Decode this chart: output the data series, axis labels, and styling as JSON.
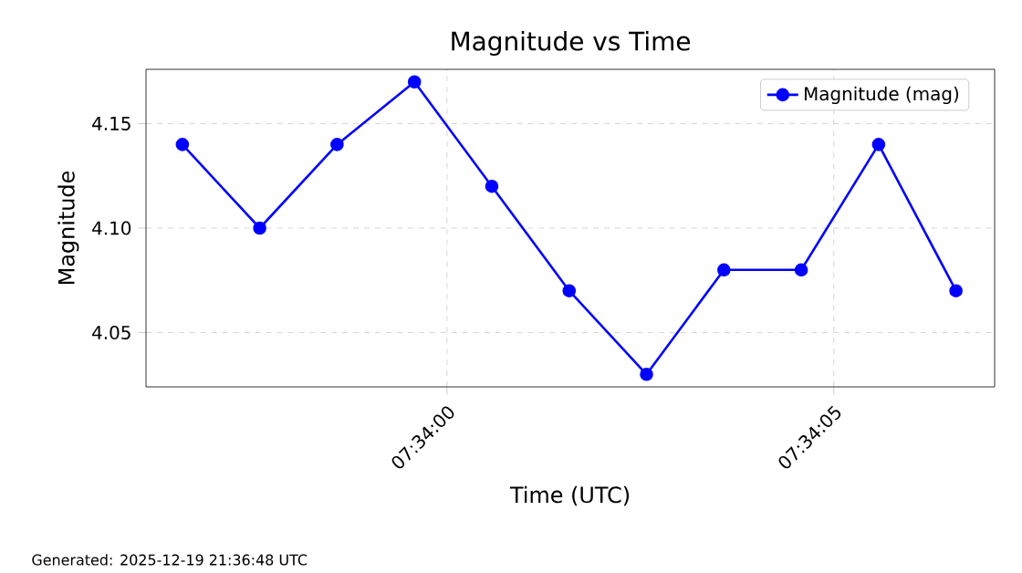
{
  "chart_data": {
    "type": "line",
    "title": "Magnitude vs Time",
    "xlabel": "Time (UTC)",
    "ylabel": "Magnitude",
    "x": [
      7.5657167,
      7.5659944,
      7.5662722,
      7.56655,
      7.5668278,
      7.5671056,
      7.5673833,
      7.5676611,
      7.5679389,
      7.5682167,
      7.5684944
    ],
    "series": [
      {
        "name": "Magnitude (mag)",
        "color": "#0000ff",
        "values": [
          4.14,
          4.1,
          4.14,
          4.17,
          4.12,
          4.07,
          4.03,
          4.08,
          4.08,
          4.14,
          4.07
        ]
      }
    ],
    "xlim": [
      7.5655861,
      7.5686333
    ],
    "ylim": [
      4.024,
      4.176
    ],
    "xticks": [
      {
        "value": 7.5666667,
        "label": "07:34:00"
      },
      {
        "value": 7.5680556,
        "label": "07:34:05"
      }
    ],
    "yticks": [
      4.05,
      {
        "value": 4.1,
        "label": "4.10"
      },
      4.15
    ],
    "grid": true,
    "legend": "top right",
    "marker": "circle",
    "line_style": "solid",
    "annotations": [
      "Generated: 2025-12-19 21:36:48 UTC"
    ]
  }
}
